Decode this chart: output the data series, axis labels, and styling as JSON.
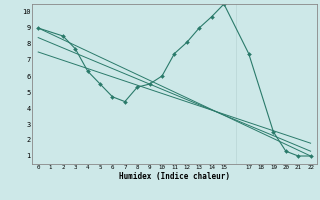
{
  "title": "",
  "xlabel": "Humidex (Indice chaleur)",
  "background_color": "#cde8e8",
  "grid_color": "#b8d4d4",
  "line_color": "#2a7a6a",
  "x_ticks": [
    0,
    1,
    2,
    3,
    4,
    5,
    6,
    7,
    8,
    9,
    10,
    11,
    12,
    13,
    14,
    15,
    17,
    18,
    19,
    20,
    21,
    22
  ],
  "xlim": [
    -0.5,
    22.5
  ],
  "ylim": [
    0.5,
    10.5
  ],
  "y_ticks": [
    1,
    2,
    3,
    4,
    5,
    6,
    7,
    8,
    9,
    10
  ],
  "line1": {
    "x": [
      0,
      2,
      3,
      4,
      5,
      6,
      7,
      8,
      9,
      10,
      11,
      12,
      13,
      14,
      15,
      17,
      19,
      20,
      21,
      22
    ],
    "y": [
      9,
      8.5,
      7.7,
      6.3,
      5.5,
      4.7,
      4.4,
      5.3,
      5.5,
      6.0,
      7.4,
      8.1,
      9.0,
      9.7,
      10.5,
      7.4,
      2.5,
      1.3,
      1.0,
      1.0
    ]
  },
  "line2": {
    "x": [
      0,
      22
    ],
    "y": [
      9.0,
      1.0
    ]
  },
  "line3": {
    "x": [
      0,
      22
    ],
    "y": [
      8.4,
      1.3
    ]
  },
  "line4": {
    "x": [
      0,
      22
    ],
    "y": [
      7.5,
      1.8
    ]
  }
}
